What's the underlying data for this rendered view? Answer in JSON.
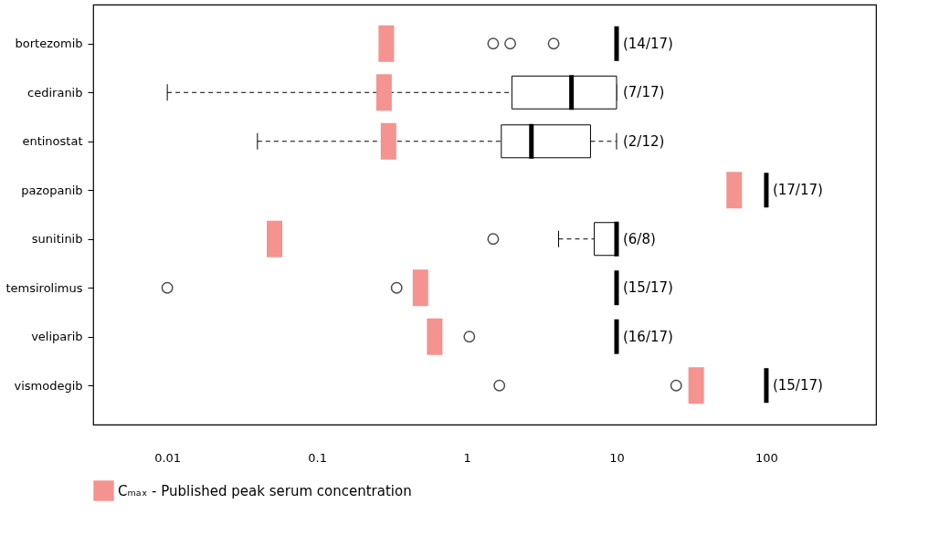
{
  "chart_data": {
    "type": "box",
    "orientation": "horizontal",
    "log": "x",
    "categories": [
      "bortezomib",
      "cediranib",
      "entinostat",
      "pazopanib",
      "sunitinib",
      "temsirolimus",
      "veliparib",
      "vismodegib"
    ],
    "boxes": [
      {
        "low": 10,
        "q1": 10,
        "median": 10,
        "q3": 10,
        "high": 10,
        "outliers": [
          1.5,
          1.95,
          3.8
        ]
      },
      {
        "low": 0.01,
        "q1": 2.0,
        "median": 5.0,
        "q3": 10,
        "high": 10
      },
      {
        "low": 0.04,
        "q1": 1.7,
        "median": 2.7,
        "q3": 6.7,
        "high": 10
      },
      {
        "low": 100,
        "q1": 100,
        "median": 100,
        "q3": 100,
        "high": 100
      },
      {
        "low": 4.1,
        "q1": 7.1,
        "median": 10,
        "q3": 10,
        "high": 10,
        "outliers": [
          1.5
        ]
      },
      {
        "low": 10,
        "q1": 10,
        "median": 10,
        "q3": 10,
        "high": 10,
        "outliers": [
          0.01,
          0.34
        ]
      },
      {
        "low": 10,
        "q1": 10,
        "median": 10,
        "q3": 10,
        "high": 10,
        "outliers": [
          1.04
        ]
      },
      {
        "low": 100,
        "q1": 100,
        "median": 100,
        "q3": 100,
        "high": 100,
        "outliers": [
          1.65,
          25
        ]
      }
    ],
    "series": [
      {
        "name": "Cₘₐₓ - Published peak serum concentration",
        "type": "scatter",
        "color": "#f4938f",
        "values": [
          0.29,
          0.28,
          0.3,
          61,
          0.052,
          0.49,
          0.61,
          34
        ]
      }
    ],
    "color": "#000000",
    "annotations": [
      "(14/17)",
      "(7/17)",
      "(2/12)",
      "(17/17)",
      "(6/8)",
      "(15/17)",
      "(16/17)",
      "(15/17)"
    ],
    "xlim": [
      0.0032,
      540
    ],
    "xticks": [
      0.01,
      0.1,
      1,
      10,
      100
    ],
    "legend": "bottom"
  }
}
